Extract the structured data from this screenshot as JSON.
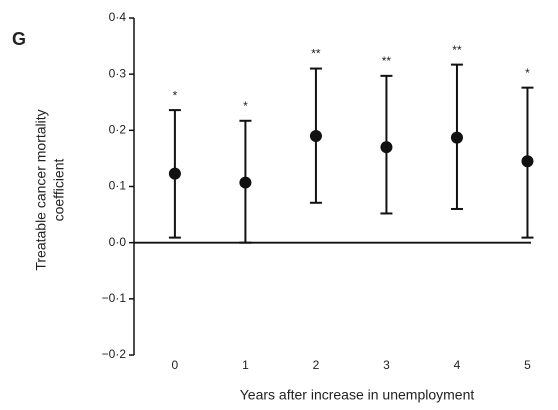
{
  "chart_data": {
    "type": "errorbar",
    "panel_label": "G",
    "ylabel": [
      "Treatable cancer mortality",
      "coefficient"
    ],
    "xlabel": "Years after increase in unemployment",
    "x": [
      0,
      1,
      2,
      3,
      4,
      5
    ],
    "xlim": [
      -0.58,
      5.05
    ],
    "xticks": [
      0,
      1,
      2,
      3,
      4,
      5
    ],
    "ylim": [
      -0.2,
      0.4
    ],
    "yticks": [
      {
        "value": -0.2,
        "label": "−0·2"
      },
      {
        "value": -0.1,
        "label": "−0·1"
      },
      {
        "value": 0,
        "label": "0·0"
      },
      {
        "value": 0.1,
        "label": "0·1"
      },
      {
        "value": 0.2,
        "label": "0·2"
      },
      {
        "value": 0.3,
        "label": "0·3"
      },
      {
        "value": 0.4,
        "label": "0·4"
      }
    ],
    "values": [
      0.123,
      0.107,
      0.19,
      0.17,
      0.187,
      0.145
    ],
    "lower": [
      0.009,
      0.0,
      0.071,
      0.052,
      0.06,
      0.009
    ],
    "upper": [
      0.236,
      0.217,
      0.31,
      0.297,
      0.317,
      0.276
    ],
    "significance": [
      "*",
      "*",
      "**",
      "**",
      "**",
      "*"
    ],
    "color": "#111111"
  }
}
